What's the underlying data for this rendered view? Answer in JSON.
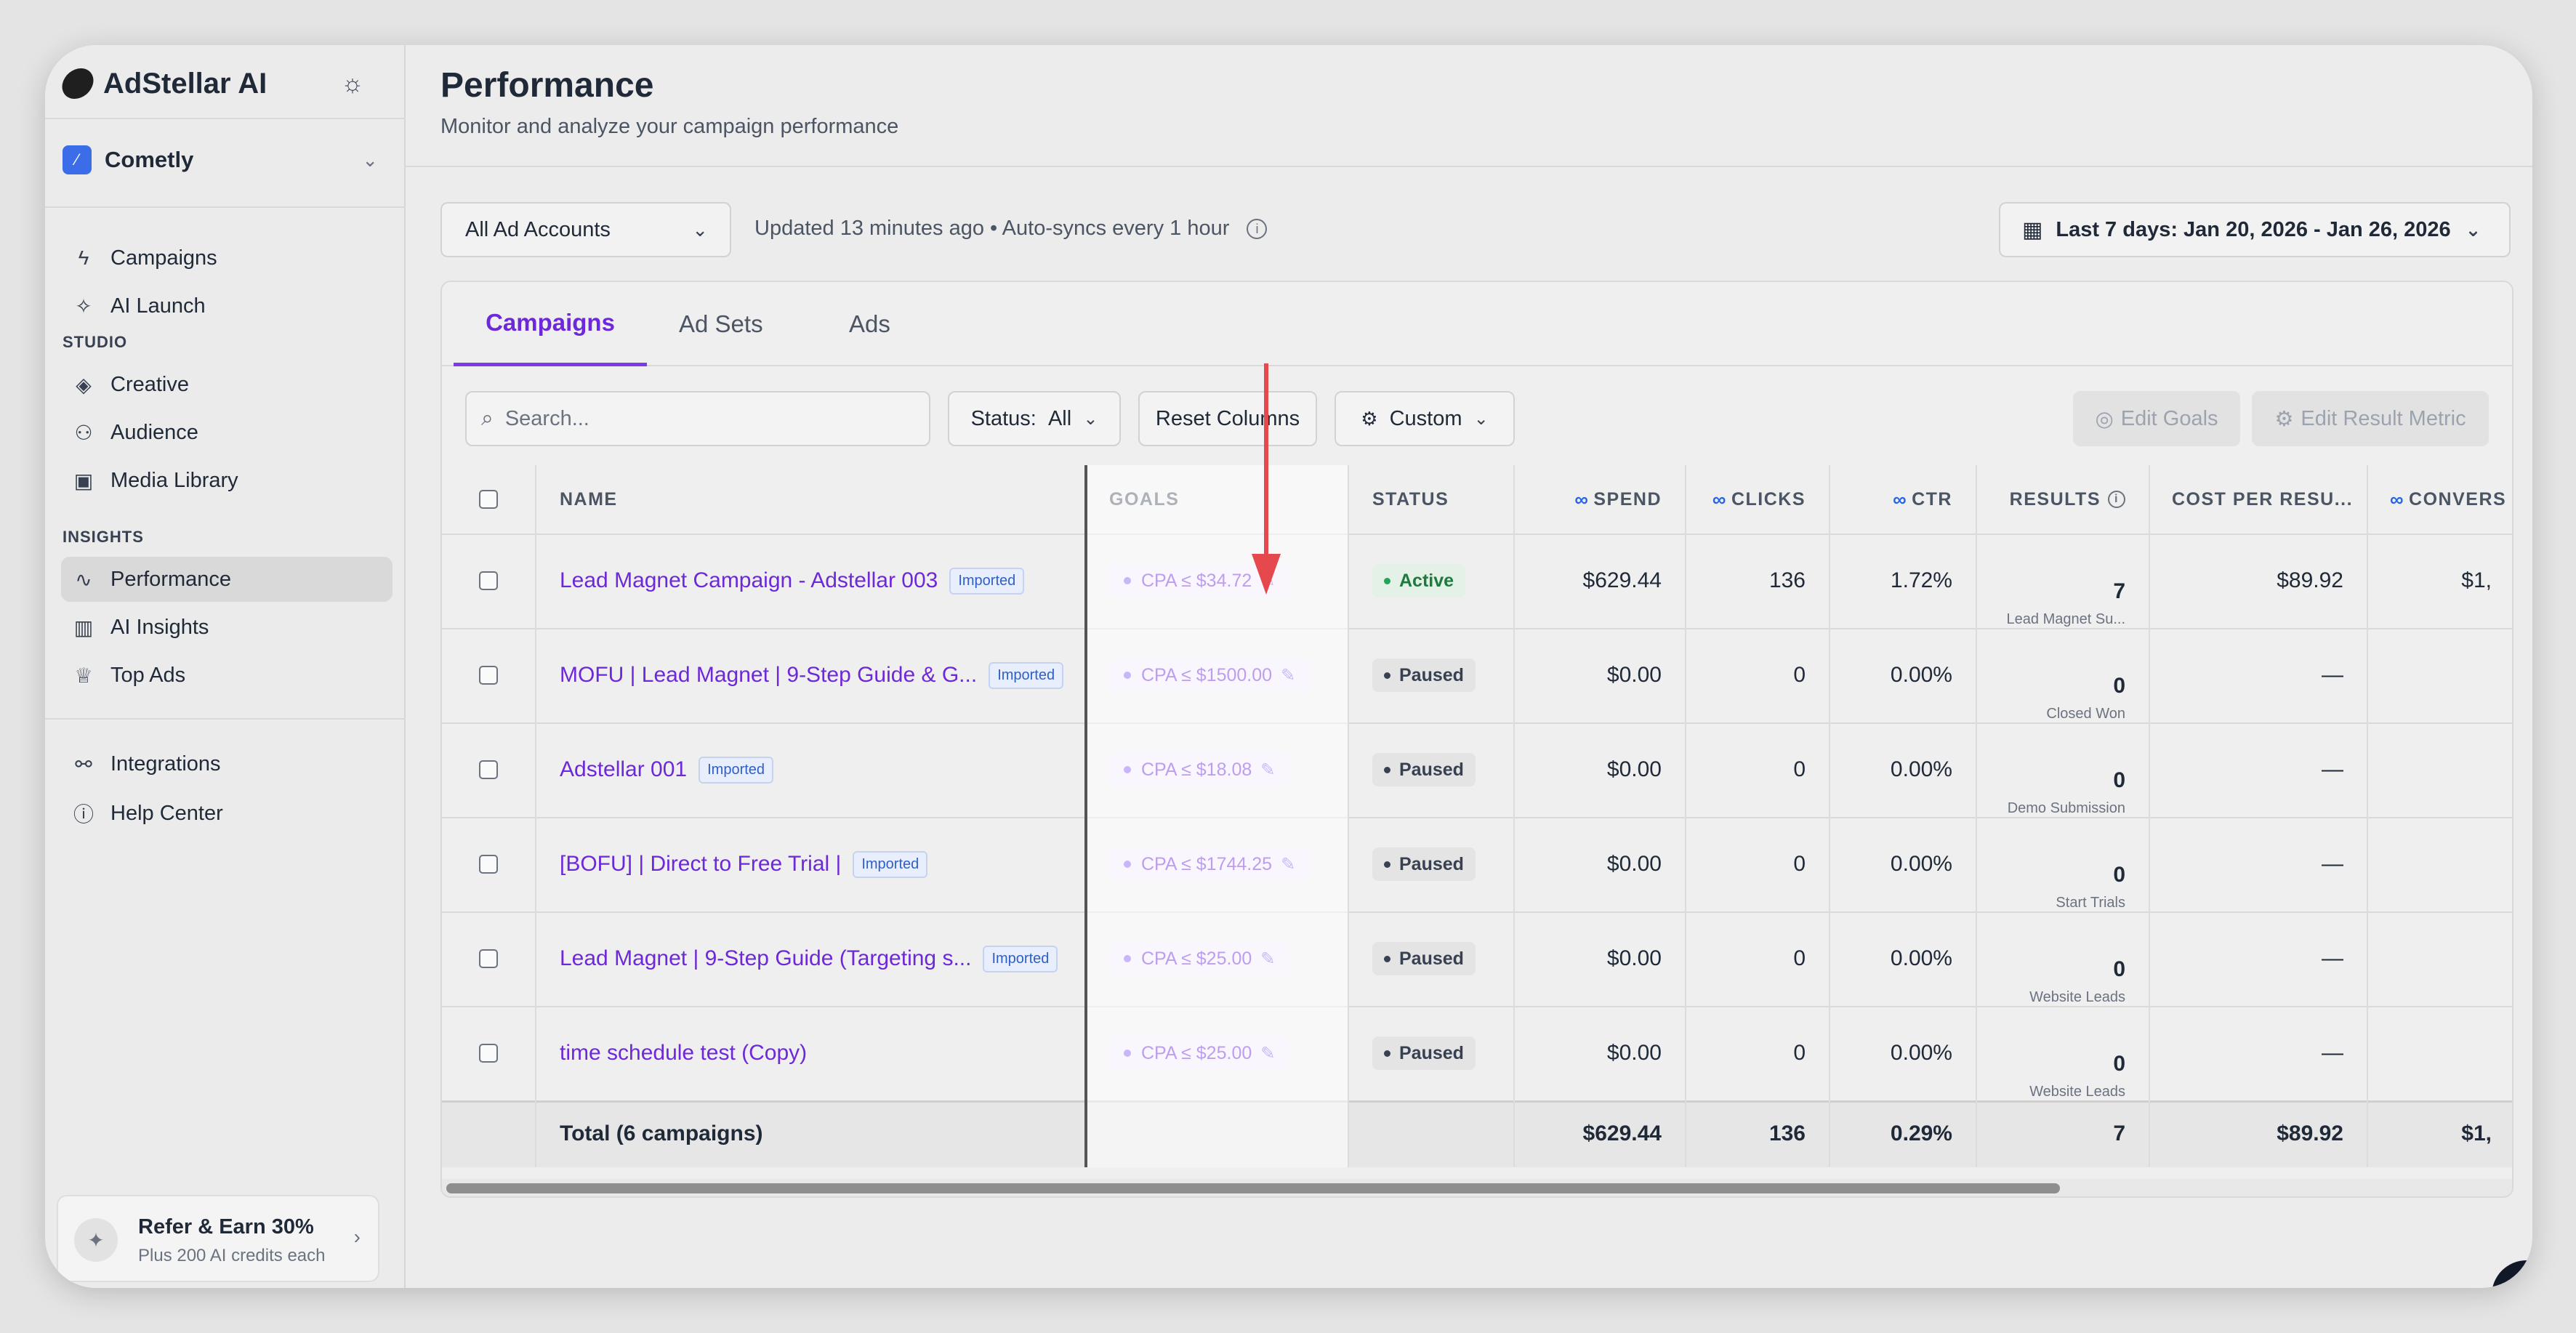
{
  "app": {
    "name": "AdStellar AI"
  },
  "workspace": {
    "name": "Cometly"
  },
  "sidebar": {
    "main_items": [
      {
        "label": "Campaigns",
        "icon": "lightning-icon"
      },
      {
        "label": "AI Launch",
        "icon": "sparkles-icon"
      }
    ],
    "studio_label": "STUDIO",
    "studio_items": [
      {
        "label": "Creative",
        "icon": "layers-icon"
      },
      {
        "label": "Audience",
        "icon": "users-icon"
      },
      {
        "label": "Media Library",
        "icon": "image-icon"
      }
    ],
    "insights_label": "INSIGHTS",
    "insights_items": [
      {
        "label": "Performance",
        "icon": "activity-icon"
      },
      {
        "label": "AI Insights",
        "icon": "bar-chart-icon"
      },
      {
        "label": "Top Ads",
        "icon": "trophy-icon"
      }
    ],
    "bottom_items": [
      {
        "label": "Integrations",
        "icon": "integrations-icon"
      },
      {
        "label": "Help Center",
        "icon": "help-circle-icon"
      }
    ],
    "refer": {
      "title": "Refer & Earn 30%",
      "subtitle": "Plus 200 AI credits each"
    }
  },
  "page": {
    "title": "Performance",
    "subtitle": "Monitor and analyze your campaign performance",
    "account_select": "All Ad Accounts",
    "sync_text": "Updated 13 minutes ago • Auto-syncs every 1 hour",
    "date_range": "Last 7 days: Jan 20, 2026 - Jan 26, 2026"
  },
  "tabs": [
    "Campaigns",
    "Ad Sets",
    "Ads"
  ],
  "toolbar": {
    "search_placeholder": "Search...",
    "status_label": "Status:",
    "status_value": "All",
    "reset_columns": "Reset Columns",
    "custom": "Custom",
    "edit_goals": "Edit Goals",
    "edit_result_metric": "Edit Result Metric"
  },
  "table": {
    "headers": {
      "name": "NAME",
      "goals": "GOALS",
      "status": "STATUS",
      "spend": "SPEND",
      "clicks": "CLICKS",
      "ctr": "CTR",
      "results": "RESULTS",
      "cost_per_result": "COST PER RESU...",
      "conversions": "CONVERS"
    },
    "imported_badge": "Imported",
    "rows": [
      {
        "name": "Lead Magnet Campaign - Adstellar 003",
        "imported": true,
        "goal": "CPA ≤ $34.72",
        "status": "Active",
        "spend": "$629.44",
        "clicks": "136",
        "ctr": "1.72%",
        "results": "7",
        "results_label": "Lead Magnet Su...",
        "cost_per_result": "$89.92",
        "conversions": "$1,"
      },
      {
        "name": "MOFU | Lead Magnet | 9-Step Guide & G...",
        "imported": true,
        "goal": "CPA ≤ $1500.00",
        "status": "Paused",
        "spend": "$0.00",
        "clicks": "0",
        "ctr": "0.00%",
        "results": "0",
        "results_label": "Closed Won",
        "cost_per_result": "—",
        "conversions": ""
      },
      {
        "name": "Adstellar 001",
        "imported": true,
        "goal": "CPA ≤ $18.08",
        "status": "Paused",
        "spend": "$0.00",
        "clicks": "0",
        "ctr": "0.00%",
        "results": "0",
        "results_label": "Demo Submission",
        "cost_per_result": "—",
        "conversions": ""
      },
      {
        "name": "[BOFU] | Direct to Free Trial |",
        "imported": true,
        "goal": "CPA ≤ $1744.25",
        "status": "Paused",
        "spend": "$0.00",
        "clicks": "0",
        "ctr": "0.00%",
        "results": "0",
        "results_label": "Start Trials",
        "cost_per_result": "—",
        "conversions": ""
      },
      {
        "name": "Lead Magnet | 9-Step Guide (Targeting s...",
        "imported": true,
        "goal": "CPA ≤ $25.00",
        "status": "Paused",
        "spend": "$0.00",
        "clicks": "0",
        "ctr": "0.00%",
        "results": "0",
        "results_label": "Website Leads",
        "cost_per_result": "—",
        "conversions": ""
      },
      {
        "name": "time schedule test (Copy)",
        "imported": false,
        "goal": "CPA ≤ $25.00",
        "status": "Paused",
        "spend": "$0.00",
        "clicks": "0",
        "ctr": "0.00%",
        "results": "0",
        "results_label": "Website Leads",
        "cost_per_result": "—",
        "conversions": ""
      }
    ],
    "total": {
      "label": "Total (6 campaigns)",
      "spend": "$629.44",
      "clicks": "136",
      "ctr": "0.29%",
      "results": "7",
      "cost_per_result": "$89.92",
      "conversions": "$1,"
    }
  },
  "colors": {
    "accent": "#6d28d9",
    "annotation_arrow": "#e5484d",
    "meta_blue": "#2563eb"
  }
}
